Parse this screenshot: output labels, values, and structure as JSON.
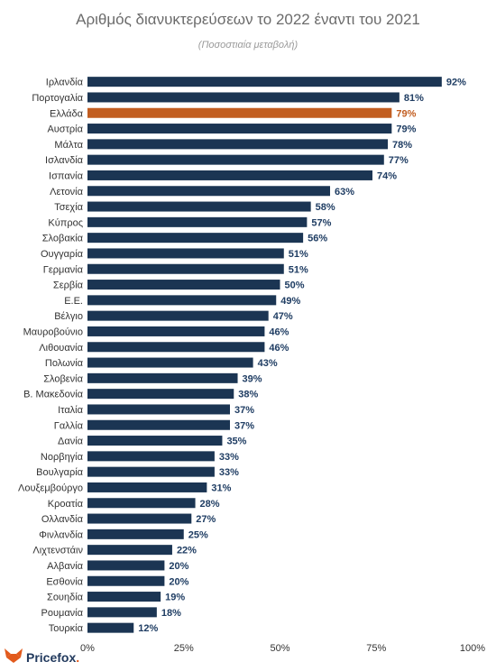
{
  "chart_data": {
    "type": "bar",
    "orientation": "horizontal",
    "title": "Αριθμός διανυκτερεύσεων το 2022 έναντι του 2021",
    "subtitle": "(Ποσοστιαία μεταβολή)",
    "categories": [
      "Ιρλανδία",
      "Πορτογαλία",
      "Ελλάδα",
      "Αυστρία",
      "Μάλτα",
      "Ισλανδία",
      "Ισπανία",
      "Λετονία",
      "Τσεχία",
      "Κύπρος",
      "Σλοβακία",
      "Ουγγαρία",
      "Γερμανία",
      "Σερβία",
      "Ε.Ε.",
      "Βέλγιο",
      "Μαυροβούνιο",
      "Λιθουανία",
      "Πολωνία",
      "Σλοβενία",
      "Β. Μακεδονία",
      "Ιταλία",
      "Γαλλία",
      "Δανία",
      "Νορβηγία",
      "Βουλγαρία",
      "Λουξεμβούργο",
      "Κροατία",
      "Ολλανδία",
      "Φινλανδία",
      "Λιχτενστάιν",
      "Αλβανία",
      "Εσθονία",
      "Σουηδία",
      "Ρουμανία",
      "Τουρκία"
    ],
    "values": [
      92,
      81,
      79,
      79,
      78,
      77,
      74,
      63,
      58,
      57,
      56,
      51,
      51,
      50,
      49,
      47,
      46,
      46,
      43,
      39,
      38,
      37,
      37,
      35,
      33,
      33,
      31,
      28,
      27,
      25,
      22,
      20,
      20,
      19,
      18,
      12
    ],
    "value_labels": [
      "92%",
      "81%",
      "79%",
      "79%",
      "78%",
      "77%",
      "74%",
      "63%",
      "58%",
      "57%",
      "56%",
      "51%",
      "51%",
      "50%",
      "49%",
      "47%",
      "46%",
      "46%",
      "43%",
      "39%",
      "38%",
      "37%",
      "37%",
      "35%",
      "33%",
      "33%",
      "31%",
      "28%",
      "27%",
      "25%",
      "22%",
      "20%",
      "20%",
      "19%",
      "18%",
      "12%"
    ],
    "highlight_category": "Ελλάδα",
    "xlim": [
      0,
      100
    ],
    "xticks": [
      "0%",
      "25%",
      "50%",
      "75%",
      "100%"
    ],
    "grid": false,
    "legend": "none",
    "colors": {
      "bar": "#1b3553",
      "highlight": "#c25e21",
      "label": "#1f3d63",
      "highlight_label": "#c25e21"
    }
  },
  "brand": {
    "name": "Pricefox",
    "dot": ".",
    "logo_icon": "fox-logo-icon",
    "color": "#223a5e",
    "accent": "#e25a1c"
  }
}
